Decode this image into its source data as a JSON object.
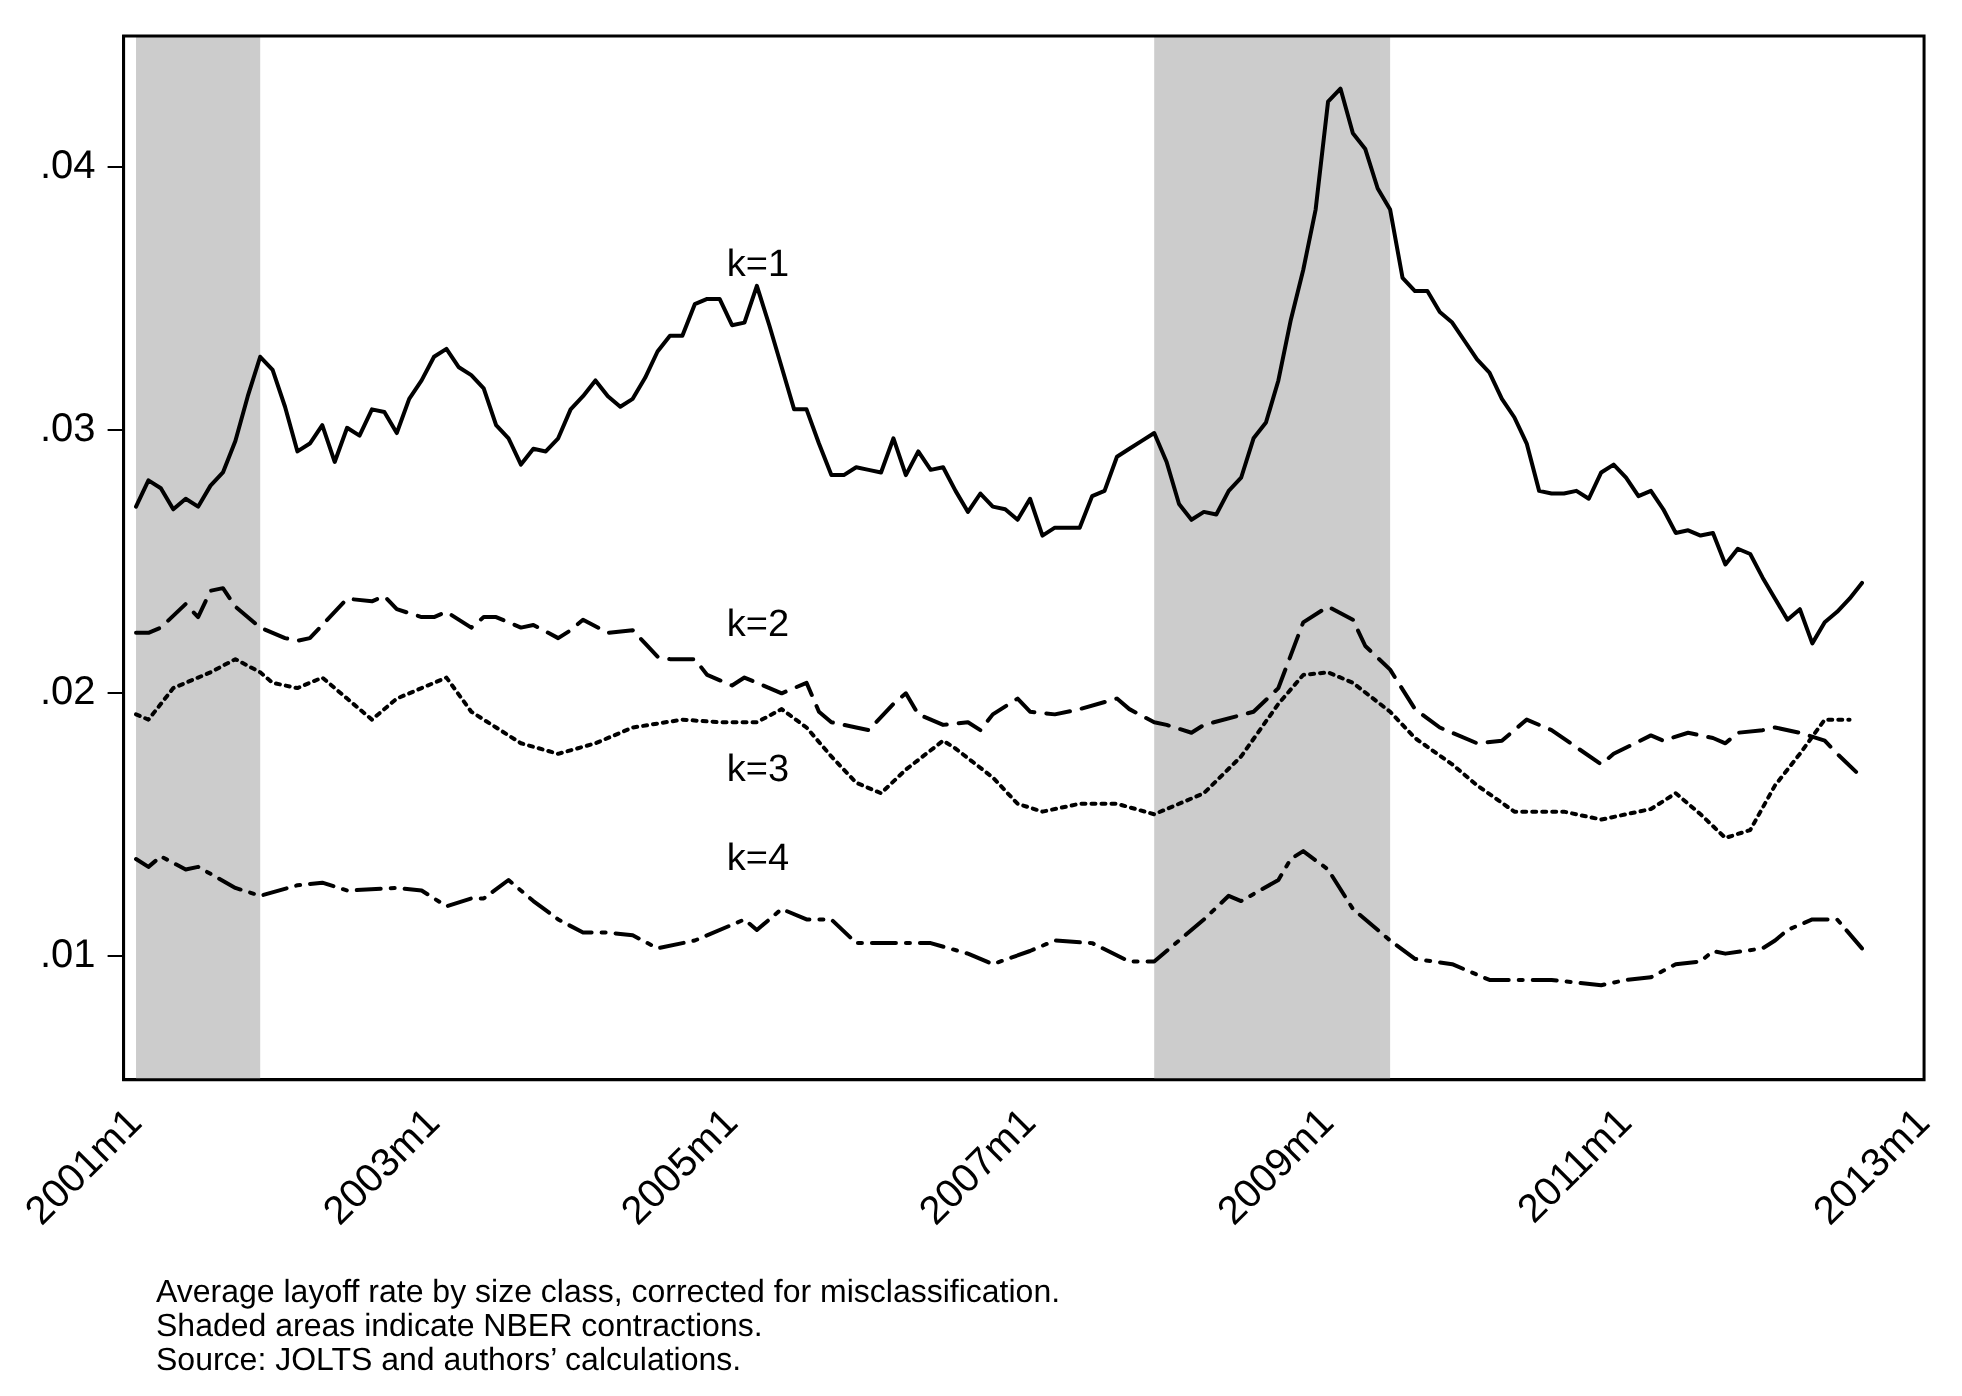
{
  "chart_data": {
    "type": "line",
    "xlim": [
      "2000-12",
      "2013-01"
    ],
    "xticks": [
      {
        "value": "2001-01",
        "label": "2001m1"
      },
      {
        "value": "2003-01",
        "label": "2003m1"
      },
      {
        "value": "2005-01",
        "label": "2005m1"
      },
      {
        "value": "2007-01",
        "label": "2007m1"
      },
      {
        "value": "2009-01",
        "label": "2009m1"
      },
      {
        "value": "2011-01",
        "label": "2011m1"
      },
      {
        "value": "2013-01",
        "label": "2013m1"
      }
    ],
    "ylim": [
      0.0053,
      0.045
    ],
    "yticks": [
      {
        "value": 0.01,
        "label": ".01"
      },
      {
        "value": 0.02,
        "label": ".02"
      },
      {
        "value": 0.03,
        "label": ".03"
      },
      {
        "value": 0.04,
        "label": ".04"
      }
    ],
    "grid": false,
    "legend": false,
    "marker": "none",
    "bands": [
      {
        "axis": "x",
        "from": "2001-01",
        "to": "2001-11",
        "color": "#cccccc"
      },
      {
        "axis": "x",
        "from": "2007-11",
        "to": "2009-06",
        "color": "#cccccc"
      }
    ],
    "series": [
      {
        "name": "k=1",
        "color": "#000000",
        "line_style": "solid",
        "x": [
          "2001-01",
          "2001-02",
          "2001-03",
          "2001-04",
          "2001-05",
          "2001-06",
          "2001-07",
          "2001-08",
          "2001-09",
          "2001-10",
          "2001-11",
          "2001-12",
          "2002-01",
          "2002-02",
          "2002-03",
          "2002-04",
          "2002-05",
          "2002-06",
          "2002-07",
          "2002-08",
          "2002-09",
          "2002-10",
          "2002-11",
          "2002-12",
          "2003-01",
          "2003-02",
          "2003-03",
          "2003-04",
          "2003-05",
          "2003-06",
          "2003-07",
          "2003-08",
          "2003-09",
          "2003-10",
          "2003-11",
          "2003-12",
          "2004-01",
          "2004-02",
          "2004-03",
          "2004-04",
          "2004-05",
          "2004-06",
          "2004-07",
          "2004-08",
          "2004-09",
          "2004-10",
          "2004-11",
          "2004-12",
          "2005-01",
          "2005-02",
          "2005-03",
          "2005-04",
          "2005-05",
          "2005-06",
          "2005-07",
          "2005-08",
          "2005-09",
          "2005-10",
          "2005-11",
          "2005-12",
          "2006-01",
          "2006-02",
          "2006-03",
          "2006-04",
          "2006-05",
          "2006-06",
          "2006-07",
          "2006-08",
          "2006-09",
          "2006-10",
          "2006-11",
          "2006-12",
          "2007-01",
          "2007-02",
          "2007-03",
          "2007-04",
          "2007-05",
          "2007-06",
          "2007-07",
          "2007-08",
          "2007-09",
          "2007-10",
          "2007-11",
          "2007-12",
          "2008-01",
          "2008-02",
          "2008-03",
          "2008-04",
          "2008-05",
          "2008-06",
          "2008-07",
          "2008-08",
          "2008-09",
          "2008-10",
          "2008-11",
          "2008-12",
          "2009-01",
          "2009-02",
          "2009-03",
          "2009-04",
          "2009-05",
          "2009-06",
          "2009-07",
          "2009-08",
          "2009-09",
          "2009-10",
          "2009-11",
          "2009-12",
          "2010-01",
          "2010-02",
          "2010-03",
          "2010-04",
          "2010-05",
          "2010-06",
          "2010-07",
          "2010-08",
          "2010-09",
          "2010-10",
          "2010-11",
          "2010-12",
          "2011-01",
          "2011-02",
          "2011-03",
          "2011-04",
          "2011-05",
          "2011-06",
          "2011-07",
          "2011-08",
          "2011-09",
          "2011-10",
          "2011-11",
          "2011-12",
          "2012-01",
          "2012-02",
          "2012-03",
          "2012-04",
          "2012-05",
          "2012-06",
          "2012-07",
          "2012-08"
        ],
        "values": [
          0.0271,
          0.0281,
          0.0278,
          0.027,
          0.0274,
          0.0271,
          0.0279,
          0.0284,
          0.0296,
          0.0313,
          0.0328,
          0.0323,
          0.0309,
          0.0292,
          0.0295,
          0.0302,
          0.0288,
          0.0301,
          0.0298,
          0.0308,
          0.0307,
          0.0299,
          0.0312,
          0.0319,
          0.0328,
          0.0331,
          0.0324,
          0.0321,
          0.0316,
          0.0302,
          0.0297,
          0.0287,
          0.0293,
          0.0292,
          0.0297,
          0.0308,
          0.0313,
          0.0319,
          0.0313,
          0.0309,
          0.0312,
          0.032,
          0.033,
          0.0336,
          0.0336,
          0.0348,
          0.035,
          0.035,
          0.034,
          0.0341,
          0.0355,
          0.034,
          0.0324,
          0.0308,
          0.0308,
          0.0295,
          0.0283,
          0.0283,
          0.0286,
          0.0285,
          0.0284,
          0.0297,
          0.0283,
          0.0292,
          0.0285,
          0.0286,
          0.0277,
          0.0269,
          0.0276,
          0.0271,
          0.027,
          0.0266,
          0.0274,
          0.026,
          0.0263,
          0.0263,
          0.0263,
          0.0275,
          0.0277,
          0.029,
          0.0293,
          0.0296,
          0.0299,
          0.0288,
          0.0272,
          0.0266,
          0.0269,
          0.0268,
          0.0277,
          0.0282,
          0.0297,
          0.0303,
          0.0319,
          0.0342,
          0.0361,
          0.0384,
          0.0425,
          0.043,
          0.0413,
          0.0407,
          0.0392,
          0.0384,
          0.0358,
          0.0353,
          0.0353,
          0.0345,
          0.0341,
          0.0334,
          0.0327,
          0.0322,
          0.0312,
          0.0305,
          0.0295,
          0.0277,
          0.0276,
          0.0276,
          0.0277,
          0.0274,
          0.0284,
          0.0287,
          0.0282,
          0.0275,
          0.0277,
          0.027,
          0.0261,
          0.0262,
          0.026,
          0.0261,
          0.0249,
          0.0255,
          0.0253,
          0.0244,
          0.0236,
          0.0228,
          0.0232,
          0.0219,
          0.0227,
          0.0231,
          0.0236,
          0.0242
        ]
      },
      {
        "name": "k=2",
        "color": "#000000",
        "line_style": "dashed",
        "x": [
          "2001-01",
          "2001-02",
          "2001-03",
          "2001-05",
          "2001-06",
          "2001-07",
          "2001-08",
          "2001-09",
          "2001-11",
          "2002-01",
          "2002-02",
          "2002-03",
          "2002-05",
          "2002-06",
          "2002-08",
          "2002-09",
          "2002-10",
          "2002-12",
          "2003-01",
          "2003-02",
          "2003-04",
          "2003-05",
          "2003-06",
          "2003-08",
          "2003-09",
          "2003-11",
          "2003-12",
          "2004-01",
          "2004-03",
          "2004-05",
          "2004-06",
          "2004-07",
          "2004-08",
          "2004-10",
          "2004-11",
          "2005-01",
          "2005-02",
          "2005-03",
          "2005-05",
          "2005-07",
          "2005-08",
          "2005-09",
          "2005-11",
          "2005-12",
          "2006-02",
          "2006-03",
          "2006-04",
          "2006-06",
          "2006-08",
          "2006-09",
          "2006-10",
          "2006-12",
          "2007-01",
          "2007-03",
          "2007-05",
          "2007-08",
          "2007-09",
          "2007-11",
          "2007-12",
          "2008-02",
          "2008-03",
          "2008-07",
          "2008-09",
          "2008-11",
          "2009-01",
          "2009-03",
          "2009-04",
          "2009-06",
          "2009-08",
          "2009-10",
          "2010-01",
          "2010-03",
          "2010-05",
          "2010-07",
          "2010-11",
          "2010-12",
          "2011-03",
          "2011-04",
          "2011-06",
          "2011-08",
          "2011-09",
          "2011-10",
          "2011-12",
          "2012-01",
          "2012-03",
          "2012-05",
          "2012-06",
          "2012-08"
        ],
        "values": [
          0.0223,
          0.0223,
          0.0225,
          0.0234,
          0.0229,
          0.0239,
          0.024,
          0.0233,
          0.0225,
          0.0221,
          0.022,
          0.0221,
          0.0231,
          0.0236,
          0.0235,
          0.0237,
          0.0232,
          0.0229,
          0.0229,
          0.0231,
          0.0225,
          0.0229,
          0.0229,
          0.0225,
          0.0226,
          0.0221,
          0.0224,
          0.0228,
          0.0223,
          0.0224,
          0.0219,
          0.0214,
          0.0213,
          0.0213,
          0.0207,
          0.0203,
          0.0206,
          0.0204,
          0.02,
          0.0204,
          0.0193,
          0.0189,
          0.0187,
          0.0186,
          0.0196,
          0.02,
          0.0192,
          0.0188,
          0.0189,
          0.0186,
          0.0192,
          0.0198,
          0.0193,
          0.0192,
          0.0194,
          0.0198,
          0.0194,
          0.0189,
          0.0188,
          0.0185,
          0.0188,
          0.0193,
          0.0202,
          0.0227,
          0.0233,
          0.0228,
          0.0218,
          0.0209,
          0.0194,
          0.0187,
          0.0181,
          0.0182,
          0.019,
          0.0186,
          0.0173,
          0.0177,
          0.0184,
          0.0182,
          0.0185,
          0.0183,
          0.0181,
          0.0185,
          0.0186,
          0.0187,
          0.0185,
          0.0182,
          0.0177,
          0.0168
        ]
      },
      {
        "name": "k=3",
        "color": "#000000",
        "line_style": "dotted",
        "x": [
          "2001-01",
          "2001-02",
          "2001-04",
          "2001-07",
          "2001-09",
          "2001-11",
          "2001-12",
          "2002-02",
          "2002-04",
          "2002-06",
          "2002-08",
          "2002-10",
          "2002-12",
          "2003-02",
          "2003-04",
          "2003-06",
          "2003-08",
          "2003-11",
          "2004-02",
          "2004-05",
          "2004-09",
          "2004-12",
          "2005-03",
          "2005-05",
          "2005-07",
          "2005-09",
          "2005-11",
          "2006-01",
          "2006-03",
          "2006-06",
          "2006-07",
          "2006-10",
          "2006-12",
          "2007-02",
          "2007-05",
          "2007-08",
          "2007-11",
          "2008-03",
          "2008-06",
          "2008-09",
          "2008-11",
          "2009-01",
          "2009-03",
          "2009-06",
          "2009-08",
          "2009-11",
          "2010-01",
          "2010-04",
          "2010-08",
          "2010-11",
          "2011-01",
          "2011-03",
          "2011-05",
          "2011-07",
          "2011-09",
          "2011-11",
          "2012-01",
          "2012-03",
          "2012-05",
          "2012-07"
        ],
        "values": [
          0.0192,
          0.019,
          0.0202,
          0.0208,
          0.0213,
          0.0208,
          0.0204,
          0.0202,
          0.0206,
          0.0198,
          0.019,
          0.0198,
          0.0202,
          0.0206,
          0.0193,
          0.0187,
          0.0181,
          0.0177,
          0.0181,
          0.0187,
          0.019,
          0.0189,
          0.0189,
          0.0194,
          0.0187,
          0.0176,
          0.0166,
          0.0162,
          0.0171,
          0.0182,
          0.0179,
          0.0168,
          0.0158,
          0.0155,
          0.0158,
          0.0158,
          0.0154,
          0.0162,
          0.0176,
          0.0196,
          0.0207,
          0.0208,
          0.0204,
          0.0193,
          0.0183,
          0.0173,
          0.0165,
          0.0155,
          0.0155,
          0.0152,
          0.0154,
          0.0156,
          0.0162,
          0.0154,
          0.0145,
          0.0148,
          0.0165,
          0.0177,
          0.019,
          0.019
        ]
      },
      {
        "name": "k=4",
        "color": "#000000",
        "line_style": "dashdot",
        "x": [
          "2001-01",
          "2001-02",
          "2001-03",
          "2001-05",
          "2001-06",
          "2001-09",
          "2001-11",
          "2002-02",
          "2002-04",
          "2002-06",
          "2002-10",
          "2002-12",
          "2003-02",
          "2003-04",
          "2003-05",
          "2003-07",
          "2003-09",
          "2003-11",
          "2004-01",
          "2004-03",
          "2004-05",
          "2004-07",
          "2004-10",
          "2005-02",
          "2005-03",
          "2005-05",
          "2005-07",
          "2005-09",
          "2005-11",
          "2006-01",
          "2006-05",
          "2006-08",
          "2006-10",
          "2007-01",
          "2007-03",
          "2007-06",
          "2007-09",
          "2007-11",
          "2008-01",
          "2008-03",
          "2008-05",
          "2008-06",
          "2008-09",
          "2008-10",
          "2008-11",
          "2009-01",
          "2009-03",
          "2009-06",
          "2009-08",
          "2009-11",
          "2010-02",
          "2010-07",
          "2010-11",
          "2011-01",
          "2011-03",
          "2011-05",
          "2011-07",
          "2011-08",
          "2011-09",
          "2011-12",
          "2012-01",
          "2012-02",
          "2012-04",
          "2012-06",
          "2012-08"
        ],
        "values": [
          0.0137,
          0.0134,
          0.0138,
          0.0133,
          0.0134,
          0.0126,
          0.0123,
          0.0127,
          0.0128,
          0.0125,
          0.0126,
          0.0125,
          0.0119,
          0.0122,
          0.0122,
          0.0129,
          0.0121,
          0.0114,
          0.0109,
          0.0109,
          0.0108,
          0.0103,
          0.0106,
          0.0114,
          0.011,
          0.0118,
          0.0114,
          0.0114,
          0.0105,
          0.0105,
          0.0105,
          0.0101,
          0.0097,
          0.0102,
          0.0106,
          0.0105,
          0.0098,
          0.0098,
          0.0106,
          0.0114,
          0.0123,
          0.0121,
          0.0129,
          0.0137,
          0.014,
          0.0133,
          0.0118,
          0.0106,
          0.0099,
          0.0097,
          0.0091,
          0.0091,
          0.0089,
          0.0091,
          0.0092,
          0.0097,
          0.0098,
          0.0102,
          0.0101,
          0.0103,
          0.0106,
          0.011,
          0.0114,
          0.0114,
          0.0103
        ]
      }
    ],
    "annotations": [
      "Average layoff rate by size class, corrected for misclassification.",
      "Shaded areas indicate NBER contractions.",
      "Source: JOLTS and authors’ calculations."
    ]
  }
}
